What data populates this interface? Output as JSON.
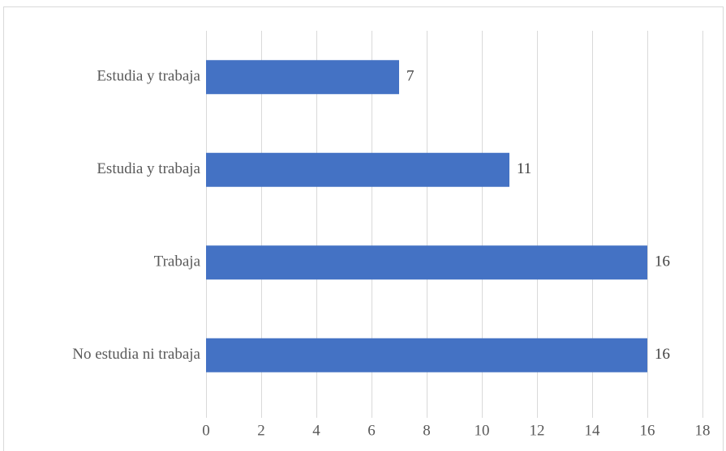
{
  "chart_data": {
    "type": "bar",
    "orientation": "horizontal",
    "categories": [
      "Estudia y trabaja",
      "Estudia y trabaja",
      "Trabaja",
      "No estudia ni trabaja"
    ],
    "values": [
      7,
      11,
      16,
      16
    ],
    "data_labels": [
      "7",
      "11",
      "16",
      "16"
    ],
    "title": "",
    "xlabel": "",
    "ylabel": "",
    "xlim": [
      0,
      18
    ],
    "xticks": [
      0,
      2,
      4,
      6,
      8,
      10,
      12,
      14,
      16,
      18
    ],
    "xtick_labels": [
      "0",
      "2",
      "4",
      "6",
      "8",
      "10",
      "12",
      "14",
      "16",
      "18"
    ],
    "grid": "vertical",
    "legend": "none",
    "bar_color": "#4472C4",
    "grid_color": "#d9d9d9"
  }
}
